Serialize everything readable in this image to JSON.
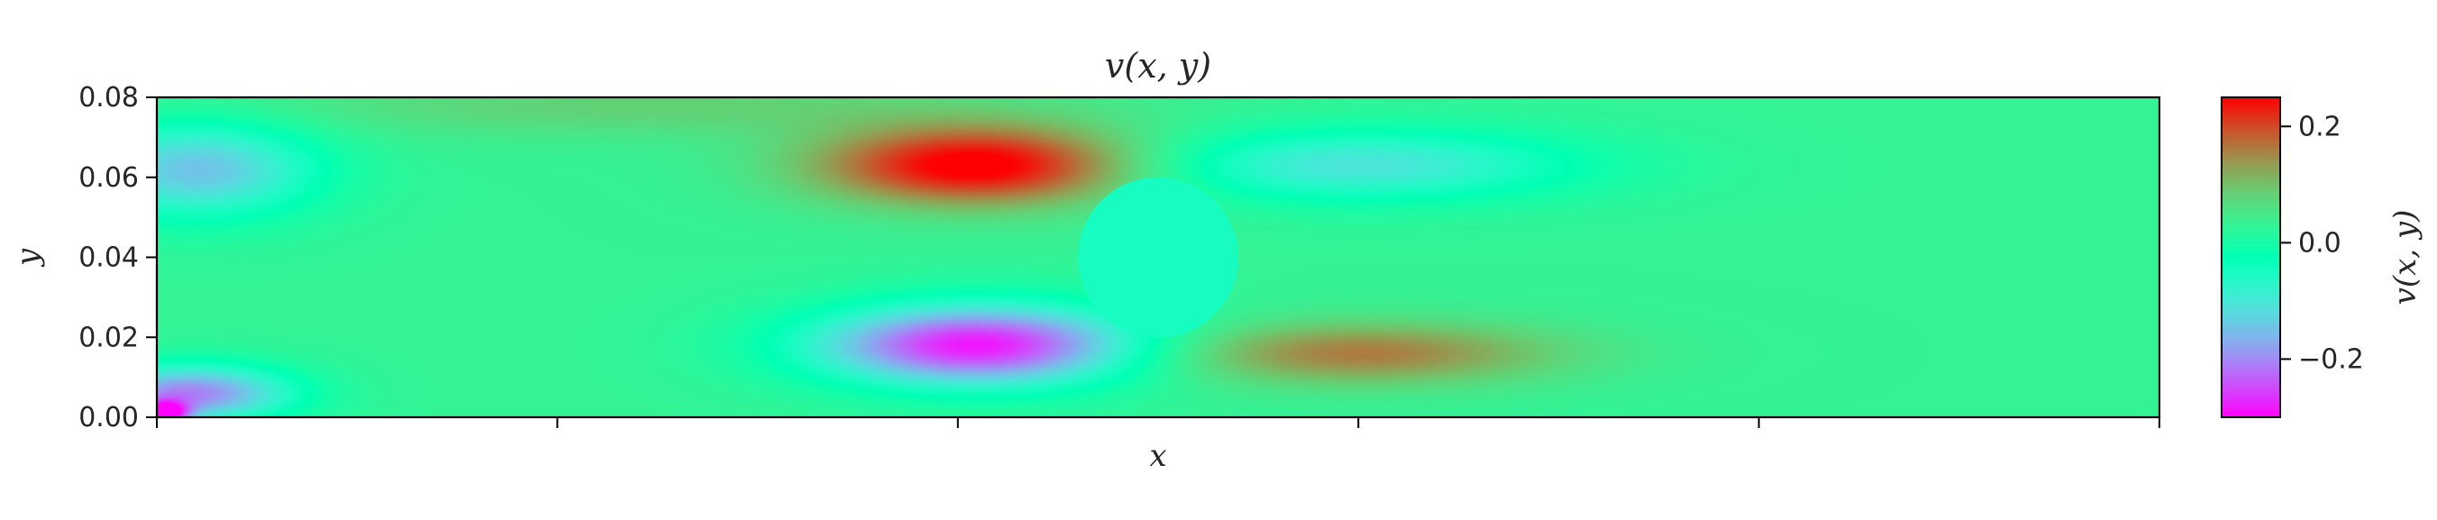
{
  "chart_data": {
    "type": "heatmap",
    "title": "v(x, y)",
    "xlabel": "x",
    "ylabel": "y",
    "colorbar_label": "v(x, y)",
    "colormap": "rainbow",
    "xlim": [
      0.0,
      0.5
    ],
    "ylim": [
      0.0,
      0.08
    ],
    "vlim": [
      -0.3,
      0.25
    ],
    "x_ticks": [
      0.0,
      0.1,
      0.2,
      0.3,
      0.4,
      0.5
    ],
    "y_ticks": [
      "0.00",
      "0.02",
      "0.04",
      "0.06",
      "0.08"
    ],
    "colorbar_ticks": [
      "−0.2",
      "0.0",
      "0.2"
    ],
    "colorbar_tick_values": [
      -0.2,
      0.0,
      0.2
    ],
    "obstacle": {
      "shape": "circle",
      "center": [
        0.25,
        0.04
      ],
      "radius": 0.02,
      "value": -0.05
    },
    "field_features": [
      {
        "label": "inlet-upper-negative",
        "center": [
          0.01,
          0.062
        ],
        "spread": [
          0.03,
          0.012
        ],
        "value": -0.16
      },
      {
        "label": "inlet-lower-negative",
        "center": [
          0.008,
          0.006
        ],
        "spread": [
          0.025,
          0.007
        ],
        "value": -0.22
      },
      {
        "label": "inlet-corner-negative",
        "center": [
          0.002,
          0.001
        ],
        "spread": [
          0.006,
          0.003
        ],
        "value": -0.25
      },
      {
        "label": "upper-positive-lobe",
        "center": [
          0.205,
          0.063
        ],
        "spread": [
          0.04,
          0.01
        ],
        "value": 0.26
      },
      {
        "label": "lower-negative-lobe",
        "center": [
          0.205,
          0.018
        ],
        "spread": [
          0.04,
          0.01
        ],
        "value": -0.3
      },
      {
        "label": "wake-upper-negative",
        "center": [
          0.3,
          0.063
        ],
        "spread": [
          0.055,
          0.009
        ],
        "value": -0.12
      },
      {
        "label": "wake-lower-positive",
        "center": [
          0.3,
          0.016
        ],
        "spread": [
          0.05,
          0.008
        ],
        "value": 0.15
      },
      {
        "label": "upper-wall-warm",
        "center": [
          0.12,
          0.078
        ],
        "spread": [
          0.1,
          0.008
        ],
        "value": 0.07
      },
      {
        "label": "background",
        "value": 0.03
      }
    ]
  },
  "colors": {
    "axis": "#000000",
    "text": "#262626",
    "obstacle_fill": "#7ef5c2"
  }
}
